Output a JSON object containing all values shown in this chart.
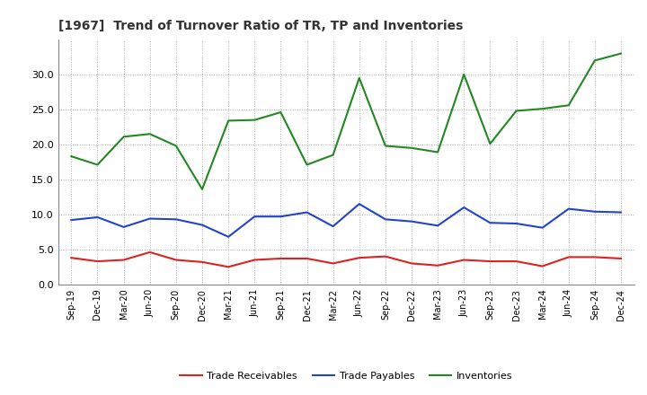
{
  "title": "[1967]  Trend of Turnover Ratio of TR, TP and Inventories",
  "x_labels": [
    "Sep-19",
    "Dec-19",
    "Mar-20",
    "Jun-20",
    "Sep-20",
    "Dec-20",
    "Mar-21",
    "Jun-21",
    "Sep-21",
    "Dec-21",
    "Mar-22",
    "Jun-22",
    "Sep-22",
    "Dec-22",
    "Mar-23",
    "Jun-23",
    "Sep-23",
    "Dec-23",
    "Mar-24",
    "Jun-24",
    "Sep-24",
    "Dec-24"
  ],
  "trade_receivables": [
    3.8,
    3.3,
    3.5,
    4.6,
    3.5,
    3.2,
    2.5,
    3.5,
    3.7,
    3.7,
    3.0,
    3.8,
    4.0,
    3.0,
    2.7,
    3.5,
    3.3,
    3.3,
    2.6,
    3.9,
    3.9,
    3.7
  ],
  "trade_payables": [
    9.2,
    9.6,
    8.2,
    9.4,
    9.3,
    8.5,
    6.8,
    9.7,
    9.7,
    10.3,
    8.3,
    11.5,
    9.3,
    9.0,
    8.4,
    11.0,
    8.8,
    8.7,
    8.1,
    10.8,
    10.4,
    10.3
  ],
  "inventories": [
    18.3,
    17.1,
    21.1,
    21.5,
    19.8,
    13.6,
    23.4,
    23.5,
    24.6,
    17.1,
    18.5,
    29.5,
    19.8,
    19.5,
    18.9,
    30.0,
    20.1,
    24.8,
    25.1,
    25.6,
    32.0,
    33.0
  ],
  "color_tr": "#dd2222",
  "color_tp": "#2244cc",
  "color_inv": "#228822",
  "ylim": [
    0.0,
    35.0
  ],
  "yticks": [
    0.0,
    5.0,
    10.0,
    15.0,
    20.0,
    25.0,
    30.0
  ],
  "bg_color": "#ffffff",
  "grid_color": "#aaaaaa",
  "legend_tr": "Trade Receivables",
  "legend_tp": "Trade Payables",
  "legend_inv": "Inventories",
  "title_fontsize": 10,
  "tick_fontsize": 7,
  "legend_fontsize": 8
}
